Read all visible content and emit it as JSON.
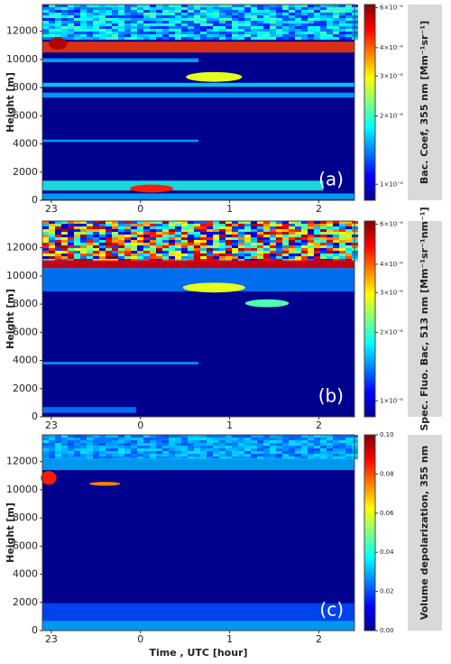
{
  "chart_data": [
    {
      "type": "heatmap",
      "annotation": "(a)",
      "ylabel": "Height [m]",
      "colorbar_label": "Bac. Coef, 355 nm  [Mm⁻¹sr⁻¹]",
      "xlim": [
        -1.1,
        2.4
      ],
      "xticks": [
        {
          "value": -1,
          "label": "23"
        },
        0,
        1,
        2
      ],
      "ylim": [
        0,
        13900
      ],
      "yticks": [
        0,
        2000,
        4000,
        6000,
        8000,
        10000,
        12000
      ],
      "colormap": "jet",
      "clog": true,
      "clim": [
        8.5e-07,
        6.2e-06
      ],
      "cticks": [
        {
          "value": 1e-06,
          "label": "1×10⁻⁶"
        },
        {
          "value": 2e-06,
          "label": "2×10⁻⁶"
        },
        {
          "value": 3e-06,
          "label": "3×10⁻⁶"
        },
        {
          "value": 4e-06,
          "label": "4×10⁻⁶"
        },
        {
          "value": 6e-06,
          "label": "6×10⁻⁶"
        }
      ]
    },
    {
      "type": "heatmap",
      "annotation": "(b)",
      "ylabel": "Height [m]",
      "colorbar_label": "Spec. Fluo. Bac, 513 nm  [Mm⁻¹sr⁻¹nm⁻¹]",
      "xlim": [
        -1.1,
        2.4
      ],
      "xticks": [
        {
          "value": -1,
          "label": "23"
        },
        0,
        1,
        2
      ],
      "ylim": [
        0,
        13900
      ],
      "yticks": [
        0,
        2000,
        4000,
        6000,
        8000,
        10000,
        12000
      ],
      "colormap": "jet",
      "clog": true,
      "clim": [
        8.5e-07,
        6.2e-06
      ],
      "cticks": [
        {
          "value": 1e-06,
          "label": "1×10⁻⁶"
        },
        {
          "value": 2e-06,
          "label": "2×10⁻⁶"
        },
        {
          "value": 3e-06,
          "label": "3×10⁻⁶"
        },
        {
          "value": 4e-06,
          "label": "4×10⁻⁶"
        },
        {
          "value": 6e-06,
          "label": "6×10⁻⁶"
        }
      ]
    },
    {
      "type": "heatmap",
      "annotation": "(c)",
      "ylabel": "Height [m]",
      "xlabel": "Time , UTC [hour]",
      "colorbar_label": "Volume depolarization, 355 nm",
      "xlim": [
        -1.1,
        2.4
      ],
      "xticks": [
        {
          "value": -1,
          "label": "23"
        },
        0,
        1,
        2
      ],
      "ylim": [
        0,
        13900
      ],
      "yticks": [
        0,
        2000,
        4000,
        6000,
        8000,
        10000,
        12000
      ],
      "colormap": "jet",
      "clog": false,
      "clim": [
        0,
        0.1
      ],
      "cticks": [
        {
          "value": 0,
          "label": "0.00"
        },
        {
          "value": 0.02,
          "label": "0.02"
        },
        {
          "value": 0.04,
          "label": "0.04"
        },
        {
          "value": 0.06,
          "label": "0.06"
        },
        {
          "value": 0.08,
          "label": "0.08"
        },
        {
          "value": 0.1,
          "label": "0.10"
        }
      ]
    }
  ]
}
